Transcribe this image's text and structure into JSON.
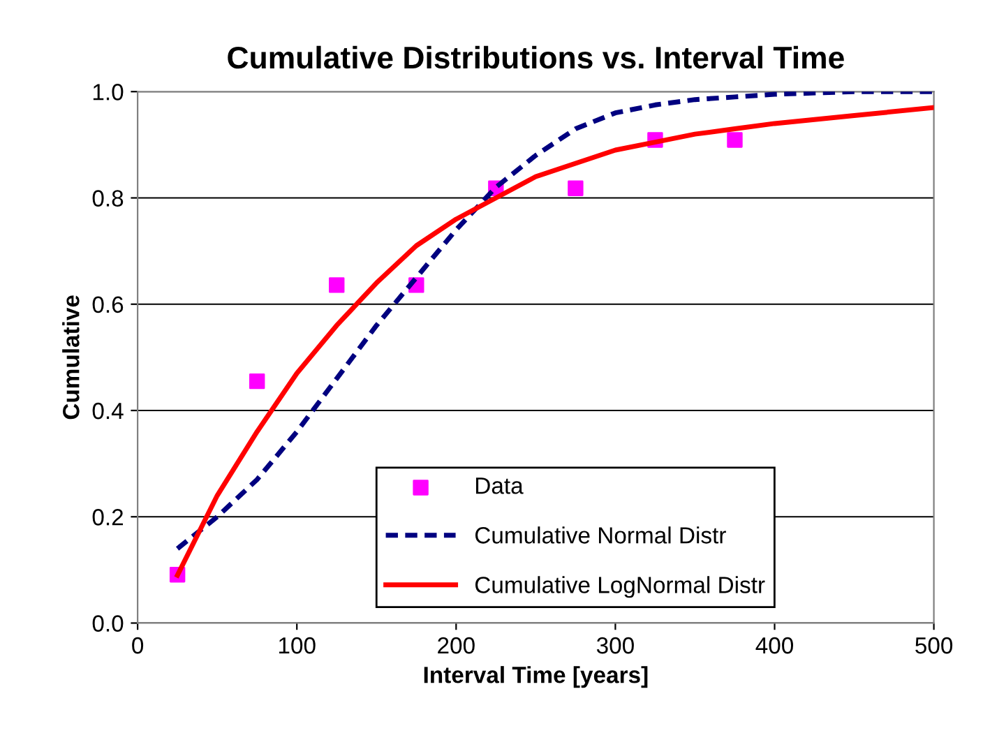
{
  "chart_data": {
    "type": "line",
    "title": "Cumulative Distributions vs. Interval Time",
    "xlabel": "Interval Time [years]",
    "ylabel": "Cumulative",
    "xlim": [
      0,
      500
    ],
    "xticks": [
      0,
      100,
      200,
      300,
      400,
      500
    ],
    "ylim": [
      0,
      1
    ],
    "yticks": [
      {
        "value": 0,
        "label": "0.0"
      },
      {
        "value": 0.2,
        "label": "0.2"
      },
      {
        "value": 0.4,
        "label": "0.4"
      },
      {
        "value": 0.6,
        "label": "0.6"
      },
      {
        "value": 0.8,
        "label": "0.8"
      },
      {
        "value": 1,
        "label": "1.0"
      }
    ],
    "grid": "y",
    "legend": "bottom right",
    "series": [
      {
        "name": "Data",
        "type": "scatter",
        "marker": "square",
        "color": "#ff00ff",
        "x": [
          25,
          75,
          125,
          175,
          225,
          275,
          325,
          375
        ],
        "values": [
          0.091,
          0.455,
          0.636,
          0.636,
          0.818,
          0.818,
          0.909,
          0.909
        ]
      },
      {
        "name": "Cumulative Normal Distr",
        "line_style": "dashed",
        "color": "#000080",
        "x": [
          25,
          50,
          75,
          100,
          125,
          150,
          175,
          200,
          225,
          250,
          275,
          300,
          325,
          350,
          375,
          400,
          450,
          500
        ],
        "values": [
          0.14,
          0.2,
          0.27,
          0.36,
          0.46,
          0.56,
          0.65,
          0.74,
          0.82,
          0.88,
          0.93,
          0.96,
          0.975,
          0.985,
          0.99,
          0.995,
          1.0,
          1.0
        ]
      },
      {
        "name": "Cumulative LogNormal Distr",
        "line_style": "solid",
        "color": "#ff0000",
        "x": [
          25,
          50,
          75,
          100,
          125,
          150,
          175,
          200,
          225,
          250,
          275,
          300,
          325,
          350,
          375,
          400,
          450,
          500
        ],
        "values": [
          0.09,
          0.24,
          0.36,
          0.47,
          0.56,
          0.64,
          0.71,
          0.76,
          0.8,
          0.84,
          0.865,
          0.89,
          0.905,
          0.92,
          0.93,
          0.94,
          0.955,
          0.97
        ]
      }
    ]
  }
}
